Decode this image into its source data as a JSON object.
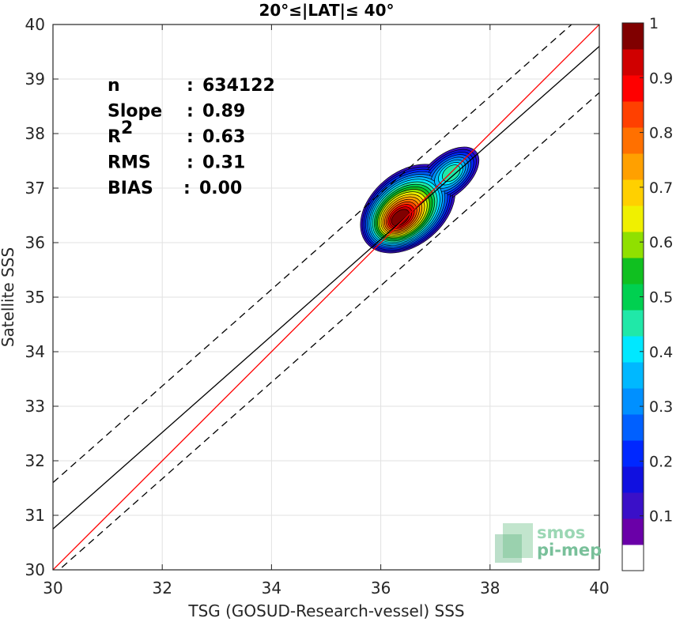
{
  "chart_data": {
    "type": "scatter",
    "title": "20°≤|LAT|≤ 40°",
    "xlabel": "TSG (GOSUD-Research-vessel) SSS",
    "ylabel": "Satellite SSS",
    "xlim": [
      30,
      40
    ],
    "ylim": [
      30,
      40
    ],
    "x_ticks": [
      30,
      32,
      34,
      36,
      38,
      40
    ],
    "y_ticks": [
      30,
      31,
      32,
      33,
      34,
      35,
      36,
      37,
      38,
      39,
      40
    ],
    "grid": true,
    "stats": [
      {
        "name": "n",
        "sep": ":",
        "value": "634122"
      },
      {
        "name": "Slope",
        "sep": ":",
        "value": "0.89"
      },
      {
        "name": "R",
        "sup": "2",
        "sep": ":",
        "value": "0.63"
      },
      {
        "name": "RMS",
        "sep": ":",
        "value": "0.31"
      },
      {
        "name": "BIAS",
        "sep": ":",
        "value": "0.00"
      }
    ],
    "lines": {
      "identity": {
        "color": "#ff0000",
        "x": [
          30,
          40
        ],
        "y": [
          30,
          40
        ]
      },
      "fit": {
        "color": "#000000",
        "slope": 0.89,
        "x": [
          30,
          40
        ],
        "y": [
          30.75,
          39.6
        ]
      },
      "fit_upper": {
        "color": "#000000",
        "style": "dashed",
        "x": [
          30,
          40
        ],
        "y": [
          31.6,
          40.45
        ]
      },
      "fit_lower": {
        "color": "#000000",
        "style": "dashed",
        "x": [
          30,
          40
        ],
        "y": [
          29.9,
          38.75
        ]
      }
    },
    "density": {
      "peak_primary": {
        "x": 36.35,
        "y": 36.45
      },
      "peak_secondary": {
        "x": 37.3,
        "y": 37.28
      },
      "levels": [
        0.05,
        0.1,
        0.15,
        0.2,
        0.25,
        0.3,
        0.35,
        0.4,
        0.45,
        0.5,
        0.55,
        0.6,
        0.65,
        0.7,
        0.75,
        0.8,
        0.85,
        0.9,
        0.95
      ]
    },
    "colorbar": {
      "range": [
        0,
        1
      ],
      "ticks": [
        0.1,
        0.2,
        0.3,
        0.4,
        0.5,
        0.6,
        0.7,
        0.8,
        0.9,
        1
      ],
      "tick_labels": [
        "0.1",
        "0.2",
        "0.3",
        "0.4",
        "0.5",
        "0.6",
        "0.7",
        "0.8",
        "0.9",
        "1"
      ],
      "colors": [
        "#ffffff",
        "#6a00a8",
        "#3a10c8",
        "#1010e0",
        "#0028ff",
        "#0060ff",
        "#0090ff",
        "#00b8ff",
        "#00e8ff",
        "#20e8a8",
        "#00d050",
        "#10c020",
        "#90e000",
        "#f0f000",
        "#ffd000",
        "#ffa000",
        "#ff7000",
        "#ff4000",
        "#ff0000",
        "#d00000",
        "#800000"
      ]
    }
  },
  "logo": {
    "line1": "smos",
    "line2": "pi-mep"
  }
}
